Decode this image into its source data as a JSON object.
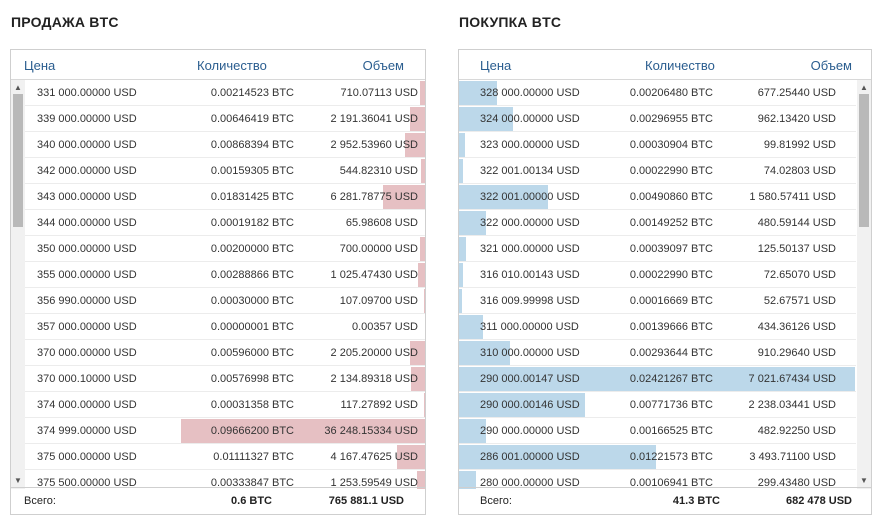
{
  "sell": {
    "title": "ПРОДАЖА BTC",
    "headers": {
      "price": "Цена",
      "qty": "Количество",
      "vol": "Объем"
    },
    "max_volume": 36248.15334,
    "rows": [
      {
        "price": "331 000.00000 USD",
        "qty": "0.00214523 BTC",
        "vol": "710.07113 USD",
        "volume_value": 710.07113
      },
      {
        "price": "339 000.00000 USD",
        "qty": "0.00646419 BTC",
        "vol": "2 191.36041 USD",
        "volume_value": 2191.36041
      },
      {
        "price": "340 000.00000 USD",
        "qty": "0.00868394 BTC",
        "vol": "2 952.53960 USD",
        "volume_value": 2952.5396
      },
      {
        "price": "342 000.00000 USD",
        "qty": "0.00159305 BTC",
        "vol": "544.82310 USD",
        "volume_value": 544.8231
      },
      {
        "price": "343 000.00000 USD",
        "qty": "0.01831425 BTC",
        "vol": "6 281.78775 USD",
        "volume_value": 6281.78775
      },
      {
        "price": "344 000.00000 USD",
        "qty": "0.00019182 BTC",
        "vol": "65.98608 USD",
        "volume_value": 65.98608
      },
      {
        "price": "350 000.00000 USD",
        "qty": "0.00200000 BTC",
        "vol": "700.00000 USD",
        "volume_value": 700.0
      },
      {
        "price": "355 000.00000 USD",
        "qty": "0.00288866 BTC",
        "vol": "1 025.47430 USD",
        "volume_value": 1025.4743
      },
      {
        "price": "356 990.00000 USD",
        "qty": "0.00030000 BTC",
        "vol": "107.09700 USD",
        "volume_value": 107.097
      },
      {
        "price": "357 000.00000 USD",
        "qty": "0.00000001 BTC",
        "vol": "0.00357 USD",
        "volume_value": 0.00357
      },
      {
        "price": "370 000.00000 USD",
        "qty": "0.00596000 BTC",
        "vol": "2 205.20000 USD",
        "volume_value": 2205.2
      },
      {
        "price": "370 000.10000 USD",
        "qty": "0.00576998 BTC",
        "vol": "2 134.89318 USD",
        "volume_value": 2134.89318
      },
      {
        "price": "374 000.00000 USD",
        "qty": "0.00031358 BTC",
        "vol": "117.27892 USD",
        "volume_value": 117.27892
      },
      {
        "price": "374 999.00000 USD",
        "qty": "0.09666200 BTC",
        "vol": "36 248.15334 USD",
        "volume_value": 36248.15334
      },
      {
        "price": "375 000.00000 USD",
        "qty": "0.01111327 BTC",
        "vol": "4 167.47625 USD",
        "volume_value": 4167.47625
      },
      {
        "price": "375 500.00000 USD",
        "qty": "0.00333847 BTC",
        "vol": "1 253.59549 USD",
        "volume_value": 1253.59549
      }
    ],
    "footer": {
      "label": "Всего:",
      "qty": "0.6 BTC",
      "vol": "765 881.1 USD"
    },
    "scroll": {
      "position": 0.0,
      "visible_fraction": 0.35
    }
  },
  "buy": {
    "title": "ПОКУПКА BTC",
    "headers": {
      "price": "Цена",
      "qty": "Количество",
      "vol": "Объем"
    },
    "max_volume": 7021.67434,
    "rows": [
      {
        "price": "328 000.00000 USD",
        "qty": "0.00206480 BTC",
        "vol": "677.25440 USD",
        "volume_value": 677.2544
      },
      {
        "price": "324 000.00000 USD",
        "qty": "0.00296955 BTC",
        "vol": "962.13420 USD",
        "volume_value": 962.1342
      },
      {
        "price": "323 000.00000 USD",
        "qty": "0.00030904 BTC",
        "vol": "99.81992 USD",
        "volume_value": 99.81992
      },
      {
        "price": "322 001.00134 USD",
        "qty": "0.00022990 BTC",
        "vol": "74.02803 USD",
        "volume_value": 74.02803
      },
      {
        "price": "322 001.00000 USD",
        "qty": "0.00490860 BTC",
        "vol": "1 580.57411 USD",
        "volume_value": 1580.57411
      },
      {
        "price": "322 000.00000 USD",
        "qty": "0.00149252 BTC",
        "vol": "480.59144 USD",
        "volume_value": 480.59144
      },
      {
        "price": "321 000.00000 USD",
        "qty": "0.00039097 BTC",
        "vol": "125.50137 USD",
        "volume_value": 125.50137
      },
      {
        "price": "316 010.00143 USD",
        "qty": "0.00022990 BTC",
        "vol": "72.65070 USD",
        "volume_value": 72.6507
      },
      {
        "price": "316 009.99998 USD",
        "qty": "0.00016669 BTC",
        "vol": "52.67571 USD",
        "volume_value": 52.67571
      },
      {
        "price": "311 000.00000 USD",
        "qty": "0.00139666 BTC",
        "vol": "434.36126 USD",
        "volume_value": 434.36126
      },
      {
        "price": "310 000.00000 USD",
        "qty": "0.00293644 BTC",
        "vol": "910.29640 USD",
        "volume_value": 910.2964
      },
      {
        "price": "290 000.00147 USD",
        "qty": "0.02421267 BTC",
        "vol": "7 021.67434 USD",
        "volume_value": 7021.67434
      },
      {
        "price": "290 000.00146 USD",
        "qty": "0.00771736 BTC",
        "vol": "2 238.03441 USD",
        "volume_value": 2238.03441
      },
      {
        "price": "290 000.00000 USD",
        "qty": "0.00166525 BTC",
        "vol": "482.92250 USD",
        "volume_value": 482.9225
      },
      {
        "price": "286 001.00000 USD",
        "qty": "0.01221573 BTC",
        "vol": "3 493.71100 USD",
        "volume_value": 3493.711
      },
      {
        "price": "280 000.00000 USD",
        "qty": "0.00106941 BTC",
        "vol": "299.43480 USD",
        "volume_value": 299.4348
      }
    ],
    "footer": {
      "label": "Всего:",
      "qty": "41.3 BTC",
      "vol": "682 478 USD"
    },
    "scroll": {
      "position": 0.0,
      "visible_fraction": 0.35
    }
  },
  "icons": {
    "scroll_up": "triangle-up",
    "scroll_down": "triangle-down"
  },
  "colors": {
    "ask_bar": "#e6c0c3",
    "bid_bar": "#bcd8ea",
    "header_text": "#2a5d8f"
  }
}
